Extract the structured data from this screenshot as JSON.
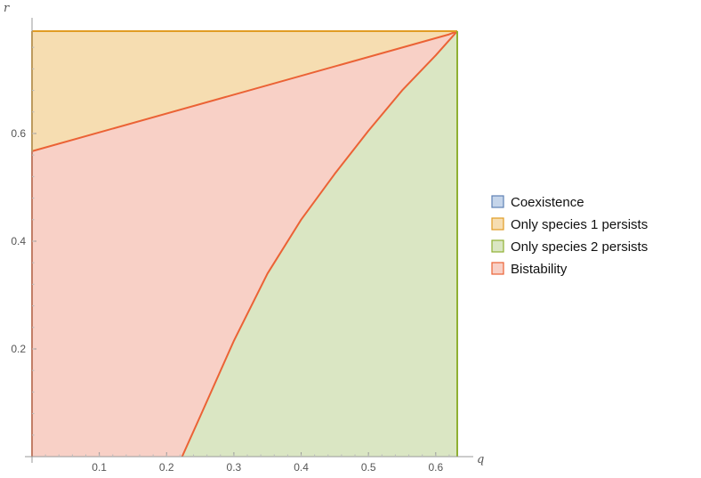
{
  "chart_data": {
    "type": "area",
    "title": "",
    "xlabel": "q",
    "ylabel": "r",
    "xlim": [
      0,
      0.632
    ],
    "ylim": [
      0,
      0.79
    ],
    "x_ticks": [
      "0.1",
      "0.2",
      "0.3",
      "0.4",
      "0.5",
      "0.6"
    ],
    "y_ticks": [
      "0.2",
      "0.4",
      "0.6"
    ],
    "legend_position": "right",
    "grid": false,
    "legend": [
      {
        "name": "Coexistence",
        "fill": "#c5d5ea",
        "stroke": "#5e81b5"
      },
      {
        "name": "Only species 1 persists",
        "fill": "#f6ddb1",
        "stroke": "#e19c24"
      },
      {
        "name": "Only species 2 persists",
        "fill": "#dae6c3",
        "stroke": "#8fb032"
      },
      {
        "name": "Bistability",
        "fill": "#f8d0c6",
        "stroke": "#eb6235"
      }
    ],
    "regions": [
      {
        "name": "Only species 1 persists",
        "fill": "#f6ddb1",
        "stroke": "#e19c24",
        "points": [
          [
            0,
            0.567
          ],
          [
            0,
            0.79
          ],
          [
            0.632,
            0.79
          ],
          [
            0.62,
            0.784
          ]
        ]
      },
      {
        "name": "Bistability",
        "fill": "#f8d0c6",
        "stroke": "#eb6235",
        "points": [
          [
            0,
            0
          ],
          [
            0,
            0.567
          ],
          [
            0.62,
            0.784
          ],
          [
            0.632,
            0.79
          ],
          [
            0.6,
            0.745
          ],
          [
            0.55,
            0.68
          ],
          [
            0.5,
            0.605
          ],
          [
            0.45,
            0.525
          ],
          [
            0.4,
            0.44
          ],
          [
            0.35,
            0.34
          ],
          [
            0.3,
            0.215
          ],
          [
            0.25,
            0.075
          ],
          [
            0.223,
            0
          ]
        ]
      },
      {
        "name": "Only species 2 persists",
        "fill": "#dae6c3",
        "stroke": "#8fb032",
        "points": [
          [
            0.223,
            0
          ],
          [
            0.25,
            0.075
          ],
          [
            0.3,
            0.215
          ],
          [
            0.35,
            0.34
          ],
          [
            0.4,
            0.44
          ],
          [
            0.45,
            0.525
          ],
          [
            0.5,
            0.605
          ],
          [
            0.55,
            0.68
          ],
          [
            0.6,
            0.745
          ],
          [
            0.632,
            0.79
          ],
          [
            0.632,
            0
          ]
        ]
      }
    ],
    "boundaries": [
      {
        "name": "species-1-boundary",
        "stroke": "#eb6235",
        "points": [
          [
            0,
            0.567
          ],
          [
            0.62,
            0.784
          ],
          [
            0.632,
            0.79
          ]
        ]
      },
      {
        "name": "species-2-boundary",
        "stroke": "#eb6235",
        "points": [
          [
            0.223,
            0
          ],
          [
            0.25,
            0.075
          ],
          [
            0.3,
            0.215
          ],
          [
            0.35,
            0.34
          ],
          [
            0.4,
            0.44
          ],
          [
            0.45,
            0.525
          ],
          [
            0.5,
            0.605
          ],
          [
            0.55,
            0.68
          ],
          [
            0.6,
            0.745
          ],
          [
            0.632,
            0.79
          ]
        ]
      },
      {
        "name": "top-boundary",
        "stroke": "#e19c24",
        "points": [
          [
            0,
            0.79
          ],
          [
            0.632,
            0.79
          ]
        ]
      },
      {
        "name": "right-boundary",
        "stroke": "#8fb032",
        "points": [
          [
            0.632,
            0
          ],
          [
            0.632,
            0.79
          ]
        ]
      },
      {
        "name": "left-boundary-upper",
        "stroke": "#e19c24",
        "points": [
          [
            0,
            0.567
          ],
          [
            0,
            0.79
          ]
        ]
      },
      {
        "name": "left-boundary-lower",
        "stroke": "#eb6235",
        "points": [
          [
            0,
            0
          ],
          [
            0,
            0.567
          ]
        ]
      }
    ]
  }
}
